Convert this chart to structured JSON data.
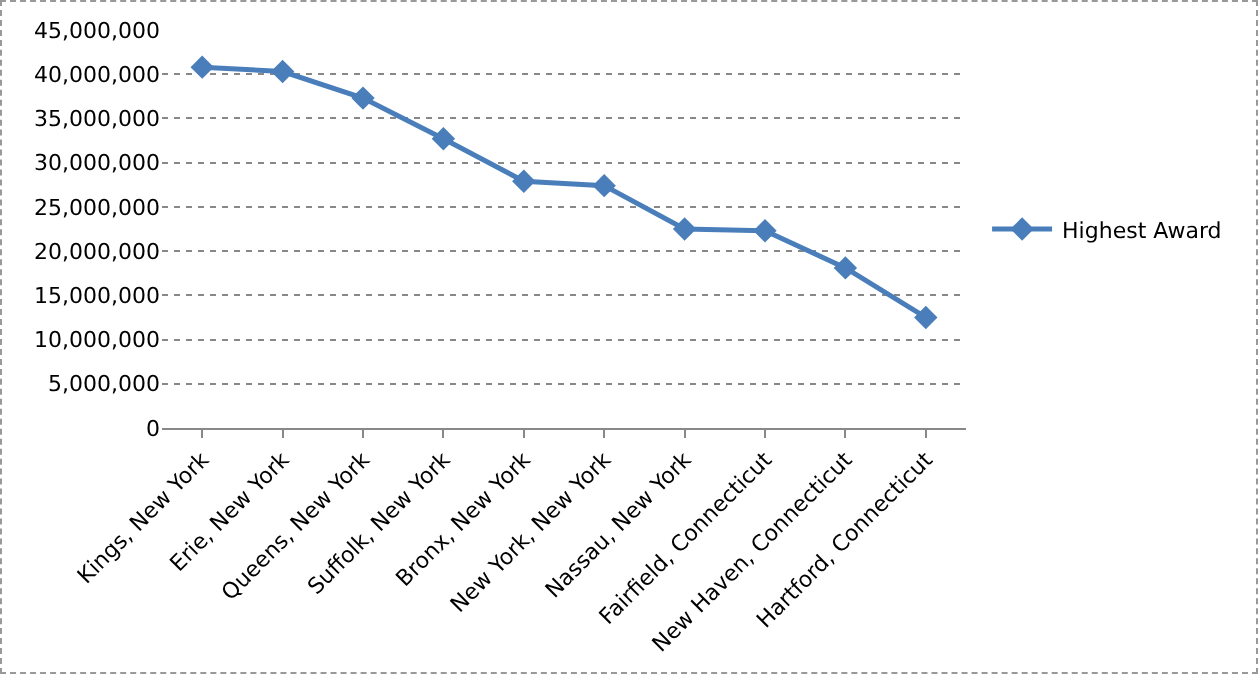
{
  "chart_data": {
    "type": "line",
    "categories": [
      "Kings, New York",
      "Erie, New York",
      "Queens, New York",
      "Suffolk, New York",
      "Bronx, New York",
      "New York, New York",
      "Nassau, New York",
      "Fairfield, Connecticut",
      "New Haven, Connecticut",
      "Hartford, Connecticut"
    ],
    "series": [
      {
        "name": "Highest Award",
        "color": "#4a7ebb",
        "values": [
          40800000,
          40300000,
          37300000,
          32700000,
          27900000,
          27400000,
          22500000,
          22300000,
          18100000,
          12500000
        ]
      }
    ],
    "ylim": [
      0,
      45000000
    ],
    "yticks": [
      {
        "value": 0,
        "label": "0"
      },
      {
        "value": 5000000,
        "label": "5,000,000"
      },
      {
        "value": 10000000,
        "label": "10,000,000"
      },
      {
        "value": 15000000,
        "label": "15,000,000"
      },
      {
        "value": 20000000,
        "label": "20,000,000"
      },
      {
        "value": 25000000,
        "label": "25,000,000"
      },
      {
        "value": 30000000,
        "label": "30,000,000"
      },
      {
        "value": 35000000,
        "label": "35,000,000"
      },
      {
        "value": 40000000,
        "label": "40,000,000"
      },
      {
        "value": 45000000,
        "label": "45,000,000"
      }
    ],
    "grid": "y",
    "legend": "right",
    "marker": "diamond",
    "line_style": "solid"
  }
}
